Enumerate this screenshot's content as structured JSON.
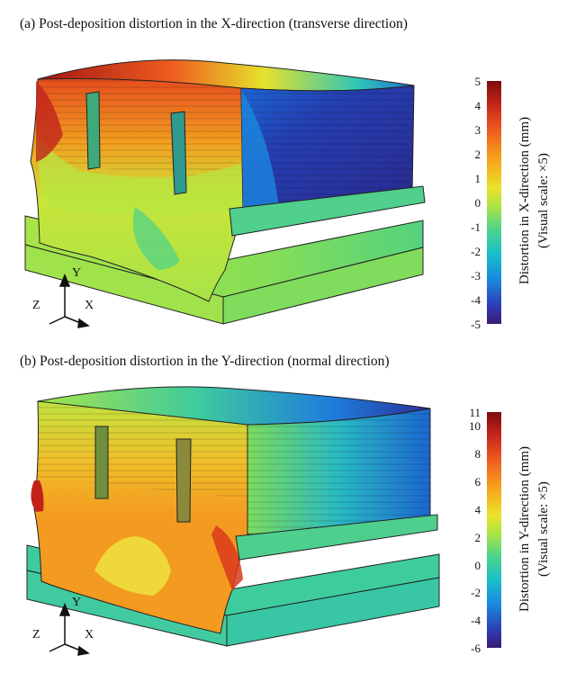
{
  "figure": {
    "panel_a": {
      "caption": "(a) Post-deposition distortion in the X-direction (transverse direction)",
      "colorbar": {
        "title": "Distortion in X-direction (mm)",
        "subtitle": "(Visual scale: ×5)",
        "ticks": [
          "5",
          "4",
          "3",
          "2",
          "1",
          "0",
          "-1",
          "-2",
          "-3",
          "-4",
          "-5"
        ],
        "min": -5,
        "max": 5
      },
      "axes": {
        "y": "Y",
        "z": "Z",
        "x": "X"
      }
    },
    "panel_b": {
      "caption": "(b) Post-deposition distortion in the Y-direction (normal direction)",
      "colorbar": {
        "title": "Distortion in Y-direction (mm)",
        "subtitle": "(Visual scale: ×5)",
        "ticks": [
          "11",
          "10",
          "8",
          "6",
          "4",
          "2",
          "0",
          "-2",
          "-4",
          "-6"
        ],
        "tick_values": [
          11,
          10,
          8,
          6,
          4,
          2,
          0,
          -2,
          -4,
          -6
        ],
        "min": -6,
        "max": 11
      },
      "axes": {
        "y": "Y",
        "z": "Z",
        "x": "X"
      }
    },
    "colormap": [
      "#7a0c0c",
      "#c1231b",
      "#ee5a1f",
      "#f8a21c",
      "#e9e32a",
      "#a8e347",
      "#4fd48b",
      "#19c0c8",
      "#1a86df",
      "#2b3fb8",
      "#3a1a74"
    ]
  }
}
